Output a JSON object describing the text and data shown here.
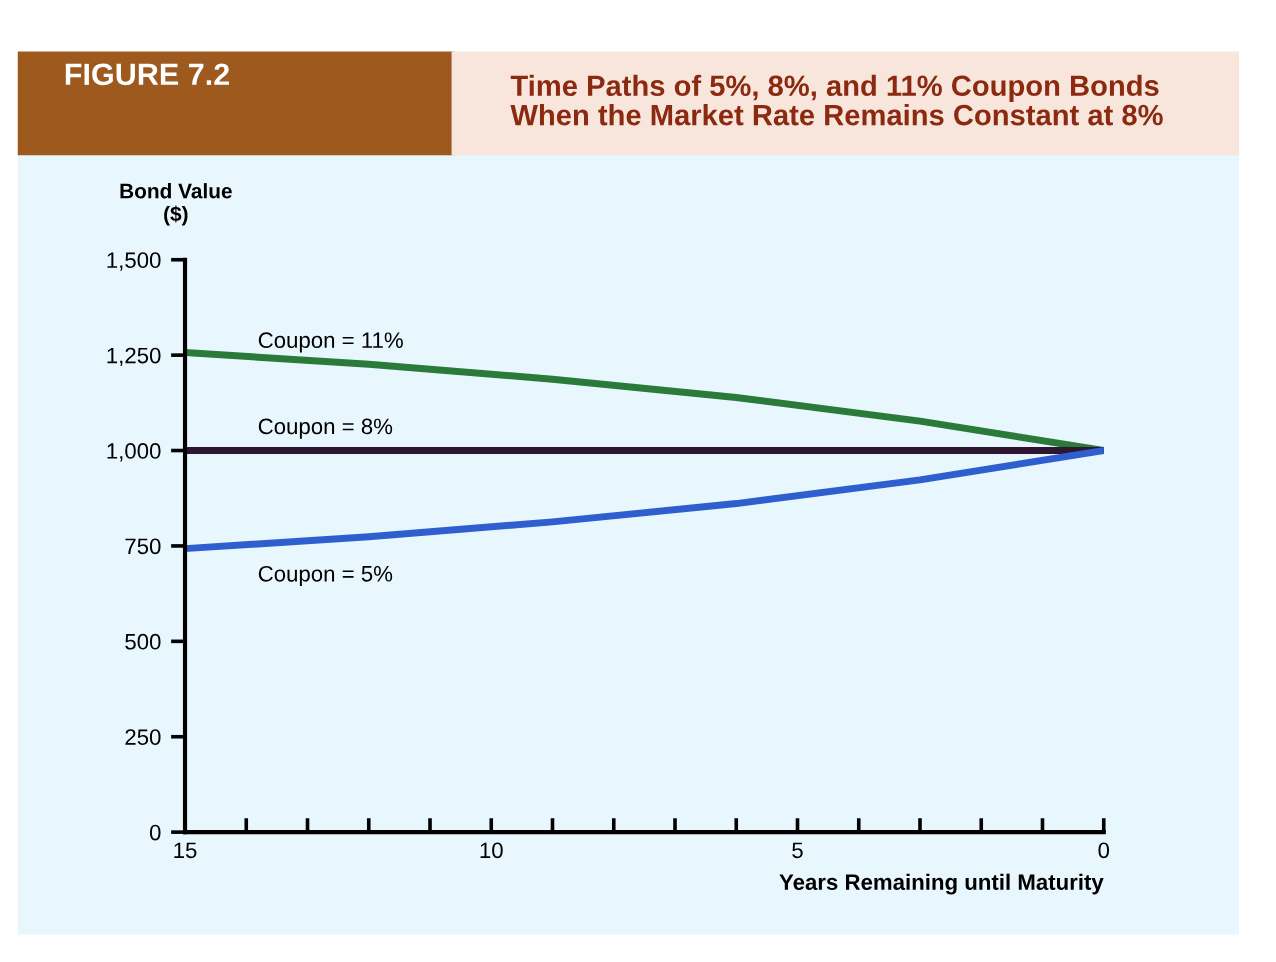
{
  "chart_data": {
    "type": "line",
    "title": "Time Paths of 5%, 8%, and 11% Coupon Bonds\nWhen the Market Rate Remains Constant at 8%",
    "annotations": [
      "FIGURE 7.2"
    ],
    "xlabel": "Years Remaining until Maturity",
    "ylabel": "Bond Value\n($)",
    "x": [
      15,
      12,
      9,
      6,
      3,
      0
    ],
    "series": [
      {
        "name": "Coupon = 11%",
        "color": "#2a7a3a",
        "values": [
          1257,
          1226,
          1187,
          1139,
          1077,
          1000
        ]
      },
      {
        "name": "Coupon = 8%",
        "color": "#2e1530",
        "values": [
          1000,
          1000,
          1000,
          1000,
          1000,
          1000
        ]
      },
      {
        "name": "Coupon = 5%",
        "color": "#2f5fcf",
        "values": [
          743,
          774,
          813,
          861,
          923,
          1000
        ]
      }
    ],
    "xlim": [
      15,
      0
    ],
    "xticks": [
      15,
      {
        "value": 14,
        "label": null
      },
      {
        "value": 13,
        "label": null
      },
      {
        "value": 12,
        "label": null
      },
      {
        "value": 11,
        "label": null
      },
      10,
      {
        "value": 9,
        "label": null
      },
      {
        "value": 8,
        "label": null
      },
      {
        "value": 7,
        "label": null
      },
      {
        "value": 6,
        "label": null
      },
      5,
      {
        "value": 4,
        "label": null
      },
      {
        "value": 3,
        "label": null
      },
      {
        "value": 2,
        "label": null
      },
      {
        "value": 1,
        "label": null
      },
      0
    ],
    "ylim": [
      0,
      1500
    ],
    "yticks": [
      0,
      {
        "value": 250,
        "label": "250"
      },
      {
        "value": 500,
        "label": "500"
      },
      {
        "value": 750,
        "label": "750"
      },
      {
        "value": 1000,
        "label": "1,000"
      },
      {
        "value": 1250,
        "label": "1,250"
      },
      {
        "value": 1500,
        "label": "1,500"
      }
    ],
    "grid": false,
    "legend": false,
    "marker": "none",
    "line_style": "solid"
  }
}
